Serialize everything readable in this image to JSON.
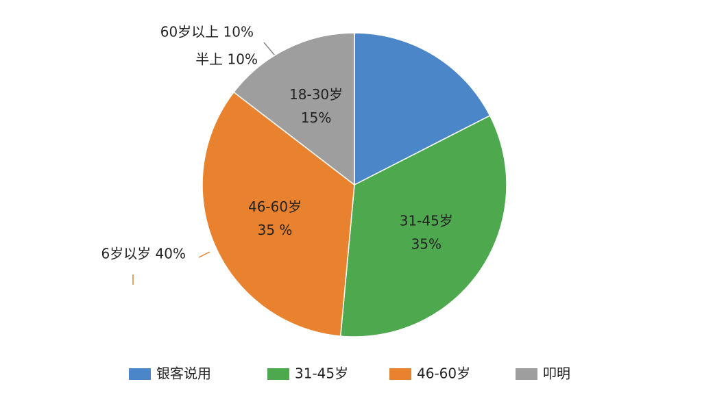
{
  "chart_data": {
    "type": "pie",
    "categories": [
      "银客说用",
      "31-45岁",
      "46-60岁",
      "叩明"
    ],
    "values": [
      18,
      35,
      35,
      15
    ],
    "slice_names": [
      null,
      "31-45岁",
      "46-60岁",
      "18-30岁"
    ],
    "value_labels": [
      null,
      "35%",
      "35 %",
      "15%"
    ],
    "colors": [
      "#4a86c8",
      "#4ea84e",
      "#e8822e",
      "#9e9e9e"
    ],
    "annotations": [
      "60岁以上 10%",
      "半上  10%",
      "6岁以岁 40%"
    ],
    "legend": "bottom"
  }
}
